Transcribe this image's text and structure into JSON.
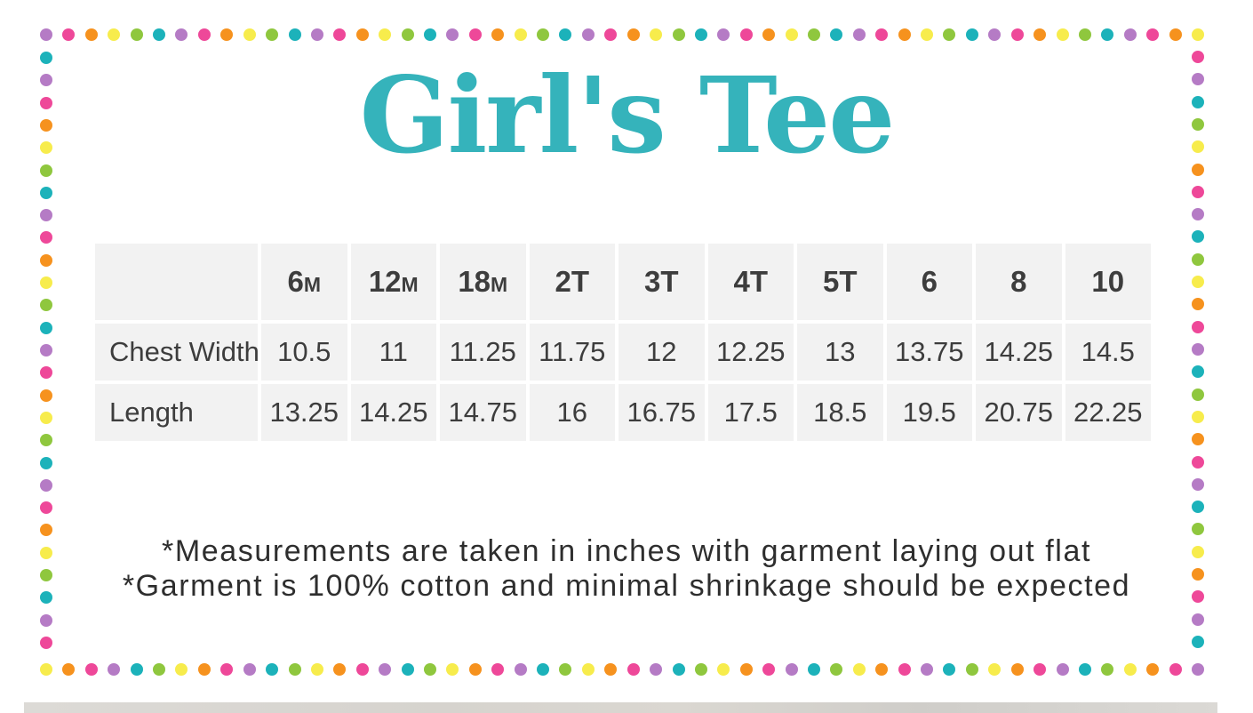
{
  "title": {
    "text": "Girl's Tee",
    "color": "#35b3bb"
  },
  "size_chart": {
    "columns": [
      "6m",
      "12m",
      "18m",
      "2T",
      "3T",
      "4T",
      "5T",
      "6",
      "8",
      "10"
    ],
    "rows": [
      {
        "label": "Chest Width",
        "values": [
          "10.5",
          "11",
          "11.25",
          "11.75",
          "12",
          "12.25",
          "13",
          "13.75",
          "14.25",
          "14.5"
        ]
      },
      {
        "label": "Length",
        "values": [
          "13.25",
          "14.25",
          "14.75",
          "16",
          "16.75",
          "17.5",
          "18.5",
          "19.5",
          "20.75",
          "22.25"
        ]
      }
    ],
    "cell_background": "#f2f2f2",
    "text_color": "#3d3d3d"
  },
  "notes": {
    "line1": "*Measurements are taken in inches with garment laying out flat",
    "line2": "*Garment is 100% cotton and minimal shrinkage should be expected"
  },
  "border_dots": {
    "colors": {
      "purple": "#b57bc5",
      "pink": "#ee4899",
      "orange": "#f6921e",
      "yellow": "#f7ec4c",
      "green": "#8fc73e",
      "teal": "#1cb2ba"
    },
    "cycle": [
      "purple",
      "pink",
      "orange",
      "yellow",
      "green",
      "teal"
    ],
    "sides": [
      {
        "name": "top",
        "start": "purple",
        "reverse": false,
        "count": 52
      },
      {
        "name": "bottom",
        "start": "yellow",
        "reverse": true,
        "count": 52
      },
      {
        "name": "left",
        "start": "teal",
        "reverse": false,
        "count": 27
      },
      {
        "name": "right",
        "start": "pink",
        "reverse": true,
        "count": 27
      }
    ]
  },
  "next_image_edge_color": "#d6d3ce"
}
